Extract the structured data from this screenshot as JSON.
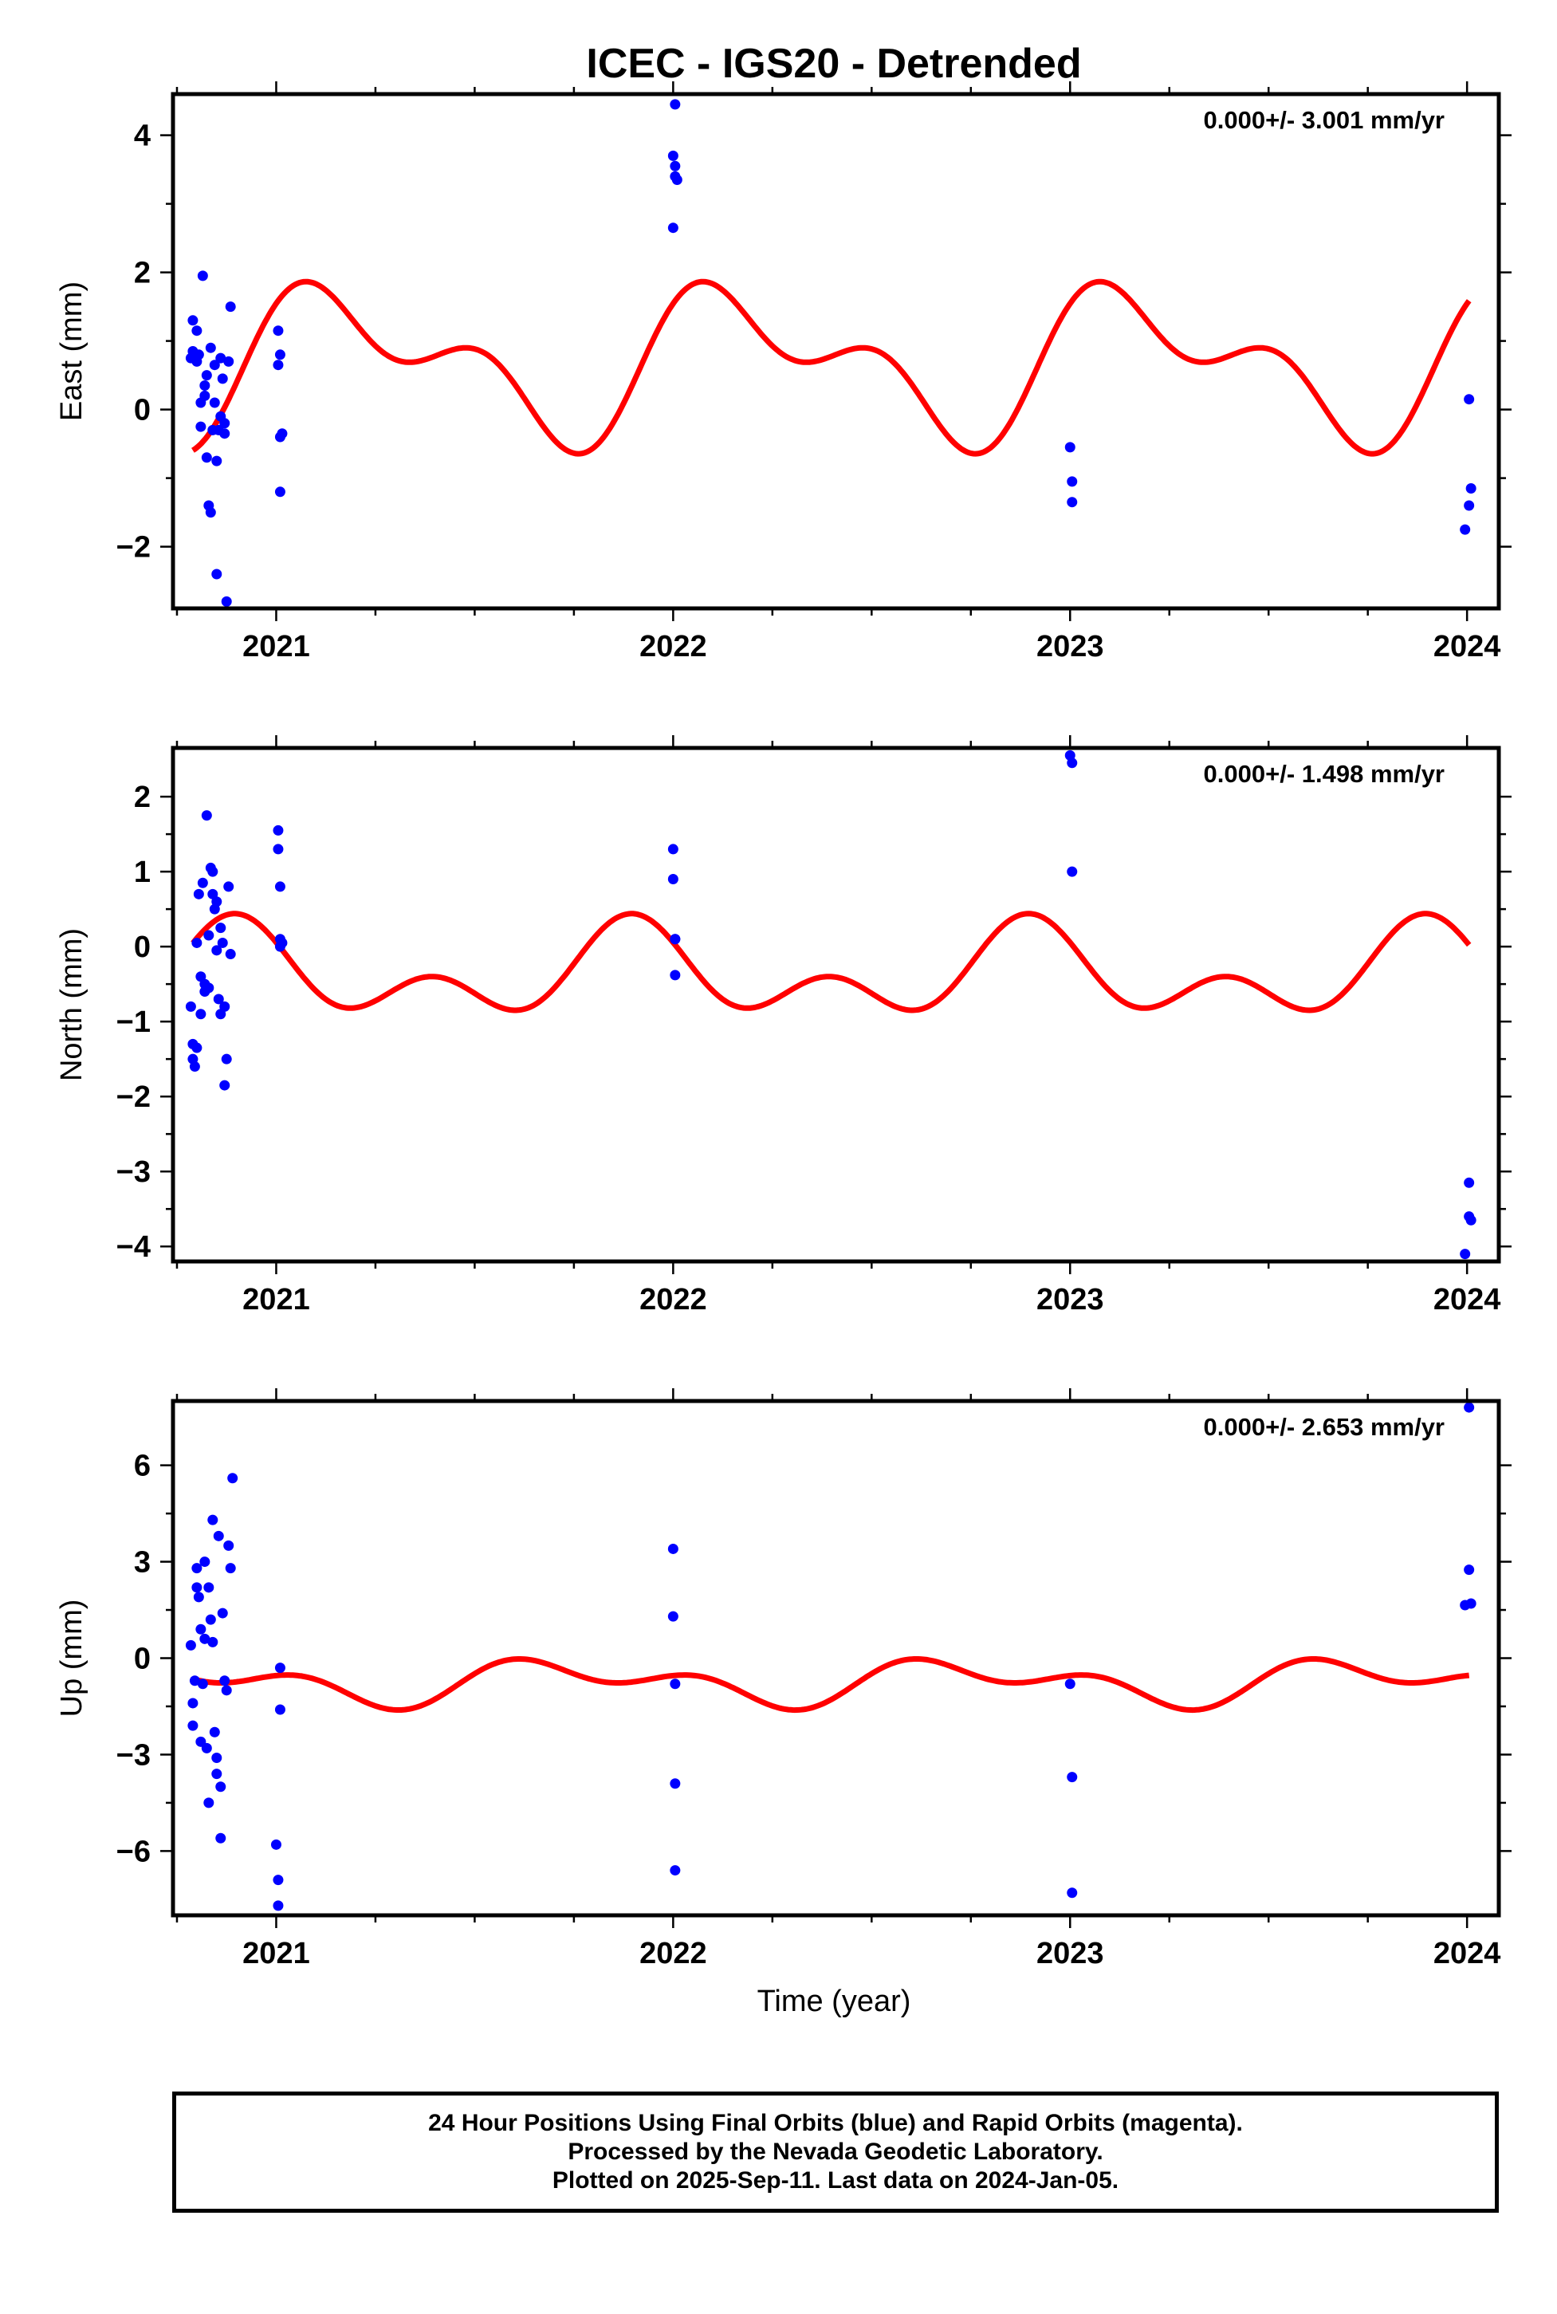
{
  "title": "ICEC - IGS20 - Detrended",
  "xlabel": "Time (year)",
  "colors": {
    "final_points": "#0000ff",
    "model_curve": "#ff0000",
    "frame": "#000000"
  },
  "footer": {
    "line1": "24 Hour Positions Using Final Orbits (blue) and Rapid Orbits (magenta).",
    "line2": "Processed by the Nevada Geodetic Laboratory.",
    "line3": "Plotted on 2025-Sep-11. Last data on 2024-Jan-05."
  },
  "chart_data": [
    {
      "type": "scatter",
      "ylabel": "East (mm)",
      "rate_label": "0.000+/- 3.001 mm/yr",
      "xlim": [
        2020.74,
        2024.08
      ],
      "ylim": [
        -2.9,
        4.6
      ],
      "yticks": [
        -2,
        0,
        2,
        4
      ],
      "xticks": [
        2021,
        2022,
        2023,
        2024
      ],
      "series": [
        {
          "kind": "points",
          "x": [
            2020.785,
            2020.79,
            2020.79,
            2020.8,
            2020.8,
            2020.805,
            2020.81,
            2020.81,
            2020.815,
            2020.82,
            2020.82,
            2020.825,
            2020.825,
            2020.83,
            2020.835,
            2020.835,
            2020.84,
            2020.845,
            2020.845,
            2020.85,
            2020.85,
            2020.855,
            2020.86,
            2020.86,
            2020.865,
            2020.87,
            2020.87,
            2020.875,
            2020.88,
            2020.885,
            2021.005,
            2021.005,
            2021.01,
            2021.01,
            2021.01,
            2021.015,
            2022.0,
            2022.0,
            2022.005,
            2022.005,
            2022.005,
            2022.01,
            2023.0,
            2023.005,
            2023.005,
            2023.995,
            2024.005,
            2024.005,
            2024.01
          ],
          "y": [
            0.75,
            0.85,
            1.3,
            1.15,
            0.7,
            0.8,
            0.1,
            -0.25,
            1.95,
            0.35,
            0.2,
            0.5,
            -0.7,
            -1.4,
            0.9,
            -1.5,
            -0.3,
            0.1,
            0.65,
            -2.4,
            -0.75,
            -0.3,
            -0.1,
            0.75,
            0.45,
            -0.2,
            -0.35,
            -2.8,
            0.7,
            1.5,
            0.65,
            1.15,
            -1.2,
            -0.4,
            0.8,
            -0.35,
            3.7,
            2.65,
            3.4,
            3.55,
            4.45,
            3.35,
            -0.55,
            -1.05,
            -1.35,
            -1.75,
            0.15,
            -1.4,
            -1.15
          ]
        },
        {
          "kind": "model",
          "amplitudes": {
            "annual": 0.85,
            "semiannual": 0.6,
            "offset": 0.68,
            "annual_phase": 0.4,
            "semiannual_phase": 1.1
          }
        }
      ]
    },
    {
      "type": "scatter",
      "ylabel": "North (mm)",
      "rate_label": "0.000+/- 1.498 mm/yr",
      "xlim": [
        2020.74,
        2024.08
      ],
      "ylim": [
        -4.2,
        2.65
      ],
      "yticks": [
        -4,
        -3,
        -2,
        -1,
        0,
        1,
        2
      ],
      "xticks": [
        2021,
        2022,
        2023,
        2024
      ],
      "series": [
        {
          "kind": "points",
          "x": [
            2020.785,
            2020.79,
            2020.79,
            2020.795,
            2020.8,
            2020.8,
            2020.805,
            2020.81,
            2020.81,
            2020.815,
            2020.82,
            2020.82,
            2020.825,
            2020.83,
            2020.83,
            2020.835,
            2020.84,
            2020.84,
            2020.845,
            2020.85,
            2020.85,
            2020.855,
            2020.86,
            2020.86,
            2020.865,
            2020.87,
            2020.87,
            2020.875,
            2020.88,
            2020.885,
            2021.005,
            2021.005,
            2021.01,
            2021.01,
            2021.01,
            2021.015,
            2022.0,
            2022.0,
            2022.005,
            2022.005,
            2022.005,
            2023.0,
            2023.005,
            2023.005,
            2023.995,
            2024.005,
            2024.005,
            2024.01
          ],
          "y": [
            -0.8,
            -1.3,
            -1.5,
            -1.6,
            -1.35,
            0.05,
            0.7,
            -0.4,
            -0.9,
            0.85,
            -0.5,
            -0.6,
            1.75,
            0.15,
            -0.55,
            1.05,
            0.7,
            1.0,
            0.5,
            -0.05,
            0.6,
            -0.7,
            -0.9,
            0.25,
            0.05,
            -0.8,
            -1.85,
            -1.5,
            0.8,
            -0.1,
            1.55,
            1.3,
            0.8,
            0.1,
            0.0,
            0.05,
            1.3,
            0.9,
            0.1,
            0.1,
            -0.38,
            2.55,
            2.45,
            1.0,
            -4.1,
            -3.6,
            -3.15,
            -3.65
          ]
        },
        {
          "kind": "model",
          "amplitudes": {
            "annual": 0.42,
            "semiannual": 0.4,
            "offset": -0.38,
            "annual_phase": 2.2,
            "semiannual_phase": 2.9
          }
        }
      ]
    },
    {
      "type": "scatter",
      "ylabel": "Up (mm)",
      "rate_label": "0.000+/- 2.653 mm/yr",
      "xlim": [
        2020.74,
        2024.08
      ],
      "ylim": [
        -8.0,
        8.0
      ],
      "yticks": [
        -6,
        -3,
        0,
        3,
        6
      ],
      "xticks": [
        2021,
        2022,
        2023,
        2024
      ],
      "series": [
        {
          "kind": "points",
          "x": [
            2020.785,
            2020.79,
            2020.79,
            2020.795,
            2020.8,
            2020.8,
            2020.805,
            2020.81,
            2020.81,
            2020.815,
            2020.82,
            2020.82,
            2020.825,
            2020.83,
            2020.83,
            2020.835,
            2020.84,
            2020.84,
            2020.845,
            2020.85,
            2020.85,
            2020.855,
            2020.86,
            2020.86,
            2020.865,
            2020.87,
            2020.875,
            2020.88,
            2020.885,
            2020.89,
            2021.0,
            2021.005,
            2021.005,
            2021.01,
            2021.01,
            2022.0,
            2022.0,
            2022.005,
            2022.005,
            2022.005,
            2023.0,
            2023.005,
            2023.005,
            2023.995,
            2024.005,
            2024.005,
            2024.01
          ],
          "y": [
            0.4,
            -2.1,
            -1.4,
            -0.7,
            2.8,
            2.2,
            1.9,
            -2.6,
            0.9,
            -0.8,
            3.0,
            0.6,
            -2.8,
            -4.5,
            2.2,
            1.2,
            4.3,
            0.5,
            -2.3,
            -3.6,
            -3.1,
            3.8,
            -4.0,
            -5.6,
            1.4,
            -0.7,
            -1.0,
            3.5,
            2.8,
            5.6,
            -5.8,
            -6.9,
            -7.7,
            -1.6,
            -0.3,
            3.4,
            1.3,
            -0.8,
            -3.9,
            -6.6,
            -0.8,
            -3.7,
            -7.3,
            1.65,
            7.8,
            2.75,
            1.7
          ]
        },
        {
          "kind": "model",
          "amplitudes": {
            "annual": 0.5,
            "semiannual": 0.42,
            "offset": -0.75,
            "annual_phase": 3.2,
            "semiannual_phase": 0.6
          }
        }
      ]
    }
  ]
}
